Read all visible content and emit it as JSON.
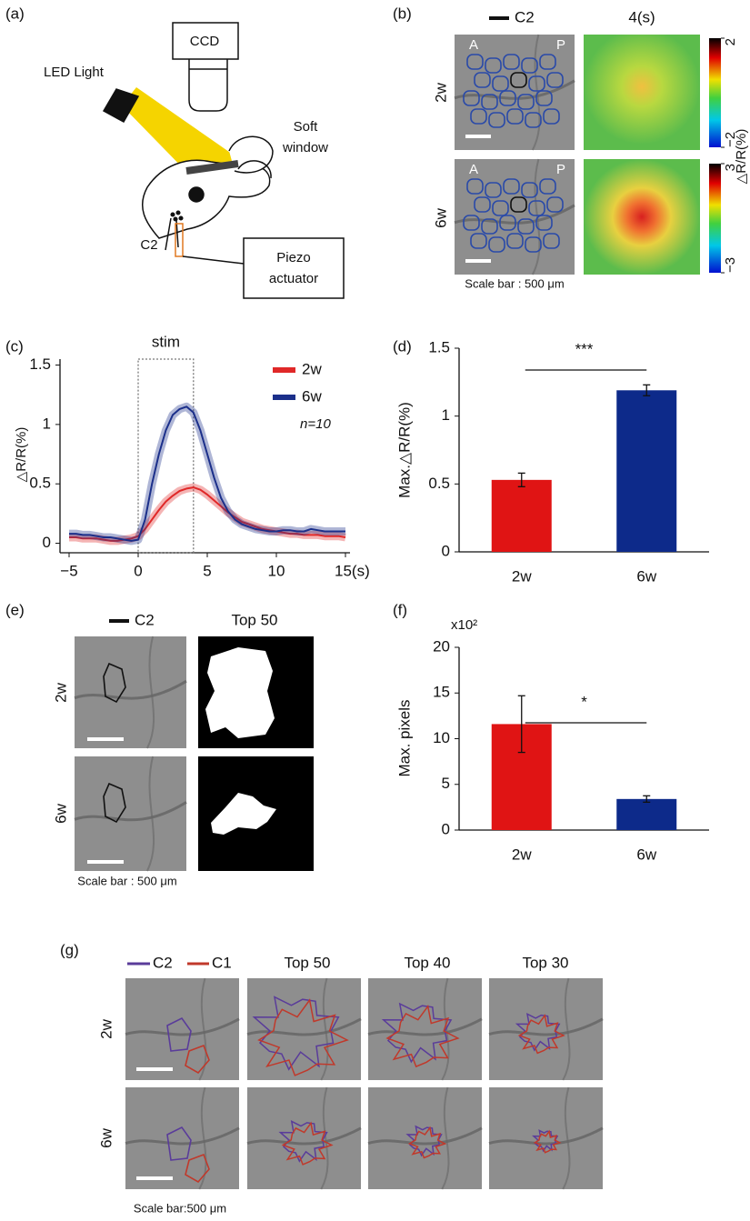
{
  "panel_labels": [
    "(a)",
    "(b)",
    "(c)",
    "(d)",
    "(e)",
    "(f)",
    "(g)"
  ],
  "panel_a": {
    "ccd": "CCD",
    "led_light": "LED Light",
    "soft_window": [
      "Soft",
      "window"
    ],
    "whisker": "C2",
    "piezo_actuator": [
      "Piezo",
      "actuator"
    ]
  },
  "panel_b": {
    "legend": "C2",
    "column_title": "4(s)",
    "rows": [
      "2w",
      "6w"
    ],
    "anterior": "A",
    "posterior": "P",
    "scale_bar": "Scale bar : 500 μm",
    "colorbar_label": "△R/R(%)",
    "colorbars": [
      {
        "lim": [
          -2,
          2
        ],
        "ticks": [
          2,
          {
            "value": -2,
            "label": "−2"
          }
        ]
      },
      {
        "lim": [
          -3,
          3
        ],
        "ticks": [
          3,
          {
            "value": -3,
            "label": "−3"
          }
        ]
      }
    ]
  },
  "chart_data": [
    {
      "type": "line",
      "annotation": "stim",
      "stim_window": [
        0,
        4
      ],
      "y_label": "△R/R(%)",
      "note": "n=10",
      "x": [
        -5,
        -4.5,
        -4,
        -3.5,
        -3,
        -2.5,
        -2,
        -1.5,
        -1,
        -0.5,
        0,
        0.5,
        1,
        1.5,
        2,
        2.5,
        3,
        3.5,
        4,
        4.5,
        5,
        5.5,
        6,
        6.5,
        7,
        7.5,
        8,
        8.5,
        9,
        9.5,
        10,
        10.5,
        11,
        11.5,
        12,
        12.5,
        13,
        13.5,
        14,
        14.5,
        15
      ],
      "xlim": [
        -5,
        15
      ],
      "xticks": [
        {
          "value": -5,
          "label": "−5"
        },
        0,
        5,
        10,
        {
          "value": 15,
          "label": "15(s)"
        }
      ],
      "ylim": [
        -0.08,
        1.55
      ],
      "yticks": [
        0,
        0.5,
        1,
        1.5
      ],
      "series": [
        {
          "name": "2w",
          "color": "#e02828",
          "values": [
            0.05,
            0.05,
            0.04,
            0.04,
            0.04,
            0.03,
            0.02,
            0.02,
            0.03,
            0.04,
            0.06,
            0.12,
            0.2,
            0.28,
            0.35,
            0.4,
            0.44,
            0.46,
            0.47,
            0.45,
            0.41,
            0.36,
            0.31,
            0.26,
            0.22,
            0.18,
            0.16,
            0.14,
            0.12,
            0.11,
            0.1,
            0.09,
            0.08,
            0.08,
            0.07,
            0.07,
            0.07,
            0.06,
            0.06,
            0.06,
            0.05
          ]
        },
        {
          "name": "6w",
          "color": "#1b2f8a",
          "values": [
            0.08,
            0.08,
            0.07,
            0.07,
            0.06,
            0.05,
            0.05,
            0.04,
            0.03,
            0.02,
            0.03,
            0.2,
            0.5,
            0.75,
            0.95,
            1.08,
            1.13,
            1.15,
            1.1,
            0.95,
            0.75,
            0.55,
            0.38,
            0.27,
            0.2,
            0.16,
            0.14,
            0.12,
            0.11,
            0.1,
            0.1,
            0.11,
            0.11,
            0.1,
            0.1,
            0.12,
            0.11,
            0.1,
            0.1,
            0.1,
            0.1
          ]
        }
      ]
    },
    {
      "type": "bar",
      "y_label": "Max.△R/R(%)",
      "categories": [
        "2w",
        "6w"
      ],
      "values": [
        0.53,
        1.19
      ],
      "errors": [
        0.05,
        0.04
      ],
      "colors": [
        "#e01414",
        "#0d2a8a"
      ],
      "ylim": [
        0,
        1.5
      ],
      "yticks": [
        0,
        0.5,
        1,
        1.5
      ],
      "significance": "***"
    },
    {
      "type": "bar",
      "y_label": "Max. pixels",
      "multiplier": "x10²",
      "categories": [
        "2w",
        "6w"
      ],
      "values": [
        11.6,
        3.4
      ],
      "errors": [
        3.1,
        0.35
      ],
      "colors": [
        "#e01414",
        "#0d2a8a"
      ],
      "ylim": [
        0,
        20
      ],
      "yticks": [
        0,
        5,
        10,
        15,
        20
      ],
      "significance": "*"
    }
  ],
  "panel_e": {
    "legend": "C2",
    "column_title": "Top  50",
    "rows": [
      "2w",
      "6w"
    ],
    "scale_bar": "Scale bar : 500 μm"
  },
  "panel_g": {
    "legend": [
      "C2",
      "C1"
    ],
    "columns": [
      "Top 50",
      "Top 40",
      "Top 30"
    ],
    "rows": [
      "2w",
      "6w"
    ],
    "scale_bar": "Scale bar:500 μm"
  }
}
